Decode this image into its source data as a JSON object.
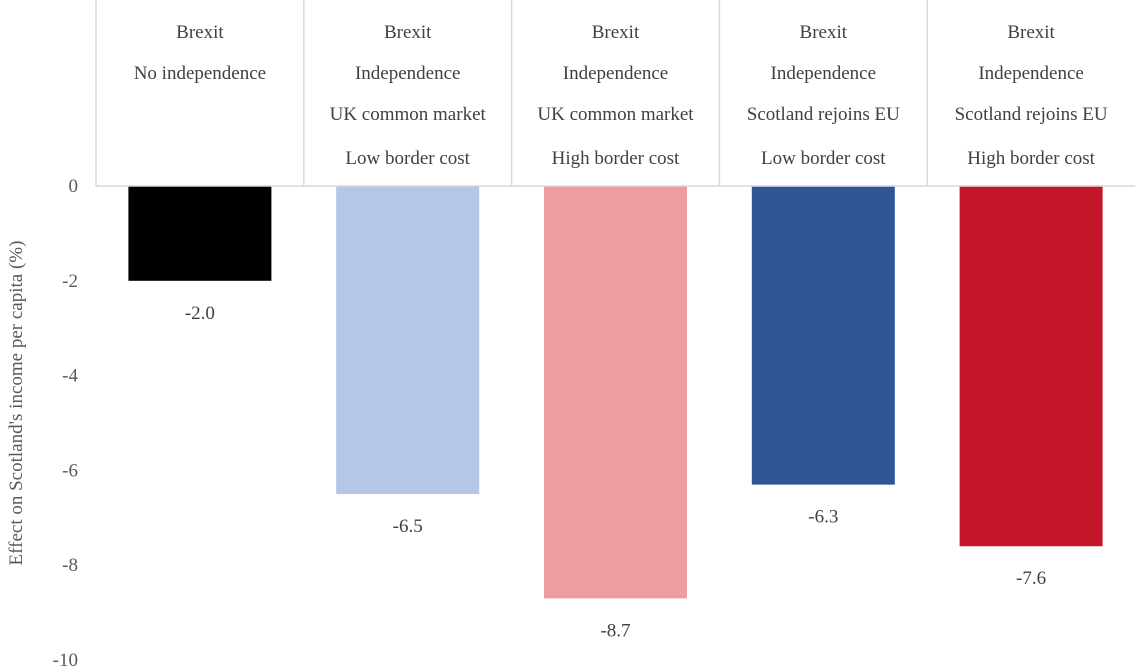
{
  "chart_data": {
    "type": "bar",
    "title": "",
    "xlabel": "",
    "ylabel": "Effect on Scotland's income per capita (%)",
    "ylim": [
      -10,
      0
    ],
    "yticks": [
      0,
      -2,
      -4,
      -6,
      -8,
      -10
    ],
    "grid": false,
    "legend": "none",
    "categories": [
      [
        "Brexit",
        "No independence"
      ],
      [
        "Brexit",
        "Independence",
        "UK common market",
        "Low border cost"
      ],
      [
        "Brexit",
        "Independence",
        "UK common market",
        "High border cost"
      ],
      [
        "Brexit",
        "Independence",
        "Scotland rejoins EU",
        "Low border cost"
      ],
      [
        "Brexit",
        "Independence",
        "Scotland rejoins EU",
        "High border cost"
      ]
    ],
    "values": [
      -2.0,
      -6.5,
      -8.7,
      -6.3,
      -7.6
    ],
    "value_labels": [
      "-2.0",
      "-6.5",
      "-8.7",
      "-6.3",
      "-7.6"
    ],
    "colors": [
      "#000000",
      "#b4c7e7",
      "#ed9ca0",
      "#2f5597",
      "#c5172a"
    ]
  }
}
